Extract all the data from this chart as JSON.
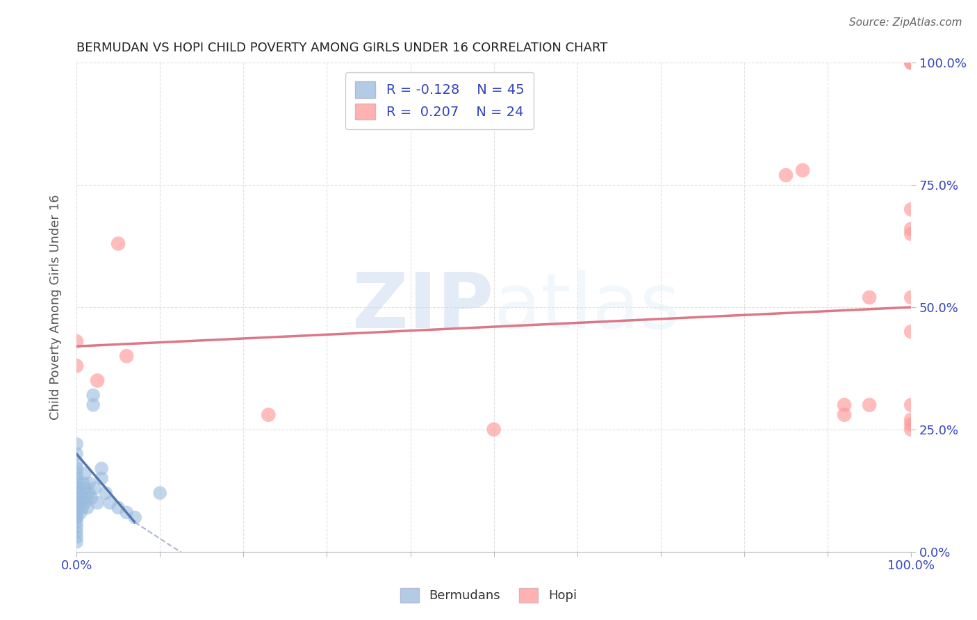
{
  "title": "BERMUDAN VS HOPI CHILD POVERTY AMONG GIRLS UNDER 16 CORRELATION CHART",
  "source": "Source: ZipAtlas.com",
  "ylabel": "Child Poverty Among Girls Under 16",
  "watermark_zip": "ZIP",
  "watermark_atlas": "atlas",
  "legend_bermudans": {
    "R": -0.128,
    "N": 45,
    "label": "Bermudans"
  },
  "legend_hopi": {
    "R": 0.207,
    "N": 24,
    "label": "Hopi"
  },
  "color_blue": "#99BBDD",
  "color_pink": "#FF9999",
  "color_trend_blue": "#5577AA",
  "color_trend_blue_dashed": "#AABBCC",
  "color_trend_pink": "#DD7788",
  "xlim": [
    0.0,
    1.0
  ],
  "ylim": [
    0.0,
    1.0
  ],
  "xticks": [
    0.0,
    0.1,
    0.2,
    0.3,
    0.4,
    0.5,
    0.6,
    0.7,
    0.8,
    0.9,
    1.0
  ],
  "ytick_positions": [
    0.0,
    0.25,
    0.5,
    0.75,
    1.0
  ],
  "ytick_labels_right": [
    "0.0%",
    "25.0%",
    "50.0%",
    "75.0%",
    "100.0%"
  ],
  "bermudans_x": [
    0.0,
    0.0,
    0.0,
    0.0,
    0.0,
    0.0,
    0.0,
    0.0,
    0.0,
    0.0,
    0.0,
    0.0,
    0.0,
    0.0,
    0.0,
    0.0,
    0.0,
    0.0,
    0.0,
    0.0,
    0.005,
    0.005,
    0.005,
    0.007,
    0.008,
    0.01,
    0.01,
    0.01,
    0.012,
    0.013,
    0.015,
    0.015,
    0.018,
    0.02,
    0.02,
    0.022,
    0.025,
    0.03,
    0.03,
    0.035,
    0.04,
    0.05,
    0.06,
    0.07,
    0.1
  ],
  "bermudans_y": [
    0.02,
    0.03,
    0.04,
    0.05,
    0.06,
    0.07,
    0.07,
    0.08,
    0.09,
    0.1,
    0.11,
    0.12,
    0.13,
    0.14,
    0.15,
    0.16,
    0.17,
    0.18,
    0.2,
    0.22,
    0.08,
    0.1,
    0.12,
    0.09,
    0.14,
    0.1,
    0.13,
    0.16,
    0.11,
    0.09,
    0.12,
    0.14,
    0.11,
    0.3,
    0.32,
    0.13,
    0.1,
    0.15,
    0.17,
    0.12,
    0.1,
    0.09,
    0.08,
    0.07,
    0.12
  ],
  "hopi_x": [
    0.0,
    0.0,
    0.025,
    0.05,
    0.06,
    0.23,
    0.5,
    0.85,
    0.87,
    0.92,
    0.92,
    0.95,
    0.95,
    1.0,
    1.0,
    1.0,
    1.0,
    1.0,
    1.0,
    1.0,
    1.0,
    1.0,
    1.0,
    1.0
  ],
  "hopi_y": [
    0.43,
    0.38,
    0.35,
    0.63,
    0.4,
    0.28,
    0.25,
    0.77,
    0.78,
    0.3,
    0.28,
    0.52,
    0.3,
    1.0,
    1.0,
    0.7,
    0.66,
    0.52,
    0.3,
    0.27,
    0.26,
    0.25,
    0.45,
    0.65
  ],
  "background_color": "#FFFFFF",
  "grid_color": "#DDDDDD",
  "title_color": "#222222",
  "axis_label_color": "#3344BB",
  "ylabel_color": "#555555"
}
